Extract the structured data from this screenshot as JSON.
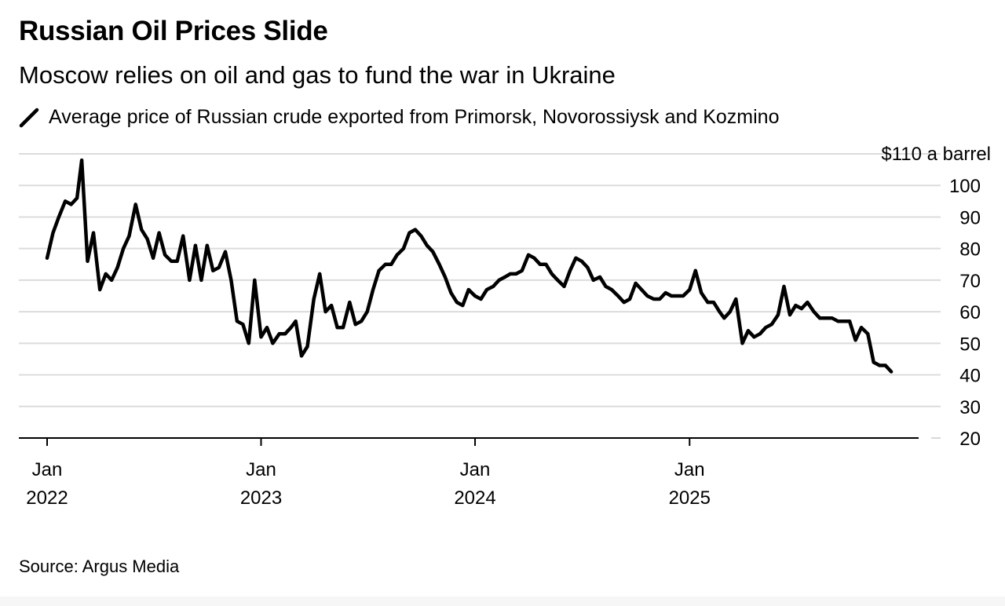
{
  "title": "Russian Oil Prices Slide",
  "subtitle": "Moscow relies on oil and gas to fund the war in Ukraine",
  "source": "Source: Argus Media",
  "chart_data": {
    "type": "line",
    "title": "Russian Oil Prices Slide",
    "subtitle": "Moscow relies on oil and gas to fund the war in Ukraine",
    "legend": {
      "position": "top-left",
      "entries": [
        "Average price of Russian crude exported from Primorsk, Novorossiysk and Kozmino"
      ]
    },
    "y_unit_label": "$110 a barrel",
    "ylim": [
      20,
      110
    ],
    "y_ticks": [
      {
        "value": 110,
        "label": "$110 a barrel"
      },
      {
        "value": 100,
        "label": "100"
      },
      {
        "value": 90,
        "label": "90"
      },
      {
        "value": 80,
        "label": "80"
      },
      {
        "value": 70,
        "label": "70"
      },
      {
        "value": 60,
        "label": "60"
      },
      {
        "value": 50,
        "label": "50"
      },
      {
        "value": 40,
        "label": "40"
      },
      {
        "value": 30,
        "label": "30"
      },
      {
        "value": 20,
        "label": "20"
      }
    ],
    "x_ticks": [
      {
        "date": "2022-01-01",
        "month": "Jan",
        "year": "2022"
      },
      {
        "date": "2023-01-01",
        "month": "Jan",
        "year": "2023"
      },
      {
        "date": "2024-01-01",
        "month": "Jan",
        "year": "2024"
      },
      {
        "date": "2025-01-01",
        "month": "Jan",
        "year": "2025"
      }
    ],
    "grid": "horizontal",
    "line_color": "#000000",
    "series": [
      {
        "name": "Average price of Russian crude exported from Primorsk, Novorossiysk and Kozmino",
        "points": [
          [
            "2022-01-01",
            77
          ],
          [
            "2022-01-11",
            85
          ],
          [
            "2022-01-21",
            90
          ],
          [
            "2022-02-01",
            95
          ],
          [
            "2022-02-11",
            94
          ],
          [
            "2022-02-21",
            96
          ],
          [
            "2022-03-01",
            108
          ],
          [
            "2022-03-11",
            76
          ],
          [
            "2022-03-21",
            85
          ],
          [
            "2022-04-01",
            67
          ],
          [
            "2022-04-11",
            72
          ],
          [
            "2022-04-21",
            70
          ],
          [
            "2022-05-01",
            74
          ],
          [
            "2022-05-11",
            80
          ],
          [
            "2022-05-21",
            84
          ],
          [
            "2022-06-01",
            94
          ],
          [
            "2022-06-11",
            86
          ],
          [
            "2022-06-21",
            83
          ],
          [
            "2022-07-01",
            77
          ],
          [
            "2022-07-11",
            85
          ],
          [
            "2022-07-21",
            78
          ],
          [
            "2022-08-01",
            76
          ],
          [
            "2022-08-11",
            76
          ],
          [
            "2022-08-21",
            84
          ],
          [
            "2022-09-01",
            70
          ],
          [
            "2022-09-11",
            81
          ],
          [
            "2022-09-21",
            70
          ],
          [
            "2022-10-01",
            81
          ],
          [
            "2022-10-11",
            73
          ],
          [
            "2022-10-21",
            74
          ],
          [
            "2022-11-01",
            79
          ],
          [
            "2022-11-11",
            70
          ],
          [
            "2022-11-21",
            57
          ],
          [
            "2022-12-01",
            56
          ],
          [
            "2022-12-11",
            50
          ],
          [
            "2022-12-21",
            70
          ],
          [
            "2023-01-01",
            52
          ],
          [
            "2023-01-11",
            55
          ],
          [
            "2023-01-21",
            50
          ],
          [
            "2023-02-01",
            53
          ],
          [
            "2023-02-11",
            53
          ],
          [
            "2023-02-21",
            55
          ],
          [
            "2023-03-01",
            57
          ],
          [
            "2023-03-11",
            46
          ],
          [
            "2023-03-21",
            49
          ],
          [
            "2023-04-01",
            64
          ],
          [
            "2023-04-11",
            72
          ],
          [
            "2023-04-21",
            60
          ],
          [
            "2023-05-01",
            62
          ],
          [
            "2023-05-11",
            55
          ],
          [
            "2023-05-21",
            55
          ],
          [
            "2023-06-01",
            63
          ],
          [
            "2023-06-11",
            56
          ],
          [
            "2023-06-21",
            57
          ],
          [
            "2023-07-01",
            60
          ],
          [
            "2023-07-11",
            67
          ],
          [
            "2023-07-21",
            73
          ],
          [
            "2023-08-01",
            75
          ],
          [
            "2023-08-11",
            75
          ],
          [
            "2023-08-21",
            78
          ],
          [
            "2023-09-01",
            80
          ],
          [
            "2023-09-11",
            85
          ],
          [
            "2023-09-21",
            86
          ],
          [
            "2023-10-01",
            84
          ],
          [
            "2023-10-11",
            81
          ],
          [
            "2023-10-21",
            79
          ],
          [
            "2023-11-01",
            75
          ],
          [
            "2023-11-11",
            71
          ],
          [
            "2023-11-21",
            66
          ],
          [
            "2023-12-01",
            63
          ],
          [
            "2023-12-11",
            62
          ],
          [
            "2023-12-21",
            67
          ],
          [
            "2024-01-01",
            65
          ],
          [
            "2024-01-11",
            64
          ],
          [
            "2024-01-21",
            67
          ],
          [
            "2024-02-01",
            68
          ],
          [
            "2024-02-11",
            70
          ],
          [
            "2024-02-21",
            71
          ],
          [
            "2024-03-01",
            72
          ],
          [
            "2024-03-11",
            72
          ],
          [
            "2024-03-21",
            73
          ],
          [
            "2024-04-01",
            78
          ],
          [
            "2024-04-11",
            77
          ],
          [
            "2024-04-21",
            75
          ],
          [
            "2024-05-01",
            75
          ],
          [
            "2024-05-11",
            72
          ],
          [
            "2024-05-21",
            70
          ],
          [
            "2024-06-01",
            68
          ],
          [
            "2024-06-11",
            73
          ],
          [
            "2024-06-21",
            77
          ],
          [
            "2024-07-01",
            76
          ],
          [
            "2024-07-11",
            74
          ],
          [
            "2024-07-21",
            70
          ],
          [
            "2024-08-01",
            71
          ],
          [
            "2024-08-11",
            68
          ],
          [
            "2024-08-21",
            67
          ],
          [
            "2024-09-01",
            65
          ],
          [
            "2024-09-11",
            63
          ],
          [
            "2024-09-21",
            64
          ],
          [
            "2024-10-01",
            69
          ],
          [
            "2024-10-11",
            67
          ],
          [
            "2024-10-21",
            65
          ],
          [
            "2024-11-01",
            64
          ],
          [
            "2024-11-11",
            64
          ],
          [
            "2024-11-21",
            66
          ],
          [
            "2024-12-01",
            65
          ],
          [
            "2024-12-11",
            65
          ],
          [
            "2024-12-21",
            65
          ],
          [
            "2025-01-01",
            67
          ],
          [
            "2025-01-11",
            73
          ],
          [
            "2025-01-21",
            66
          ],
          [
            "2025-02-01",
            63
          ],
          [
            "2025-02-11",
            63
          ],
          [
            "2025-02-21",
            60
          ],
          [
            "2025-03-01",
            58
          ],
          [
            "2025-03-11",
            60
          ],
          [
            "2025-03-21",
            64
          ],
          [
            "2025-04-01",
            50
          ],
          [
            "2025-04-11",
            54
          ],
          [
            "2025-04-21",
            52
          ],
          [
            "2025-05-01",
            53
          ],
          [
            "2025-05-11",
            55
          ],
          [
            "2025-05-21",
            56
          ],
          [
            "2025-06-01",
            59
          ],
          [
            "2025-06-11",
            68
          ],
          [
            "2025-06-21",
            59
          ],
          [
            "2025-07-01",
            62
          ],
          [
            "2025-07-11",
            61
          ],
          [
            "2025-07-21",
            63
          ],
          [
            "2025-08-01",
            60
          ],
          [
            "2025-08-11",
            58
          ],
          [
            "2025-08-21",
            58
          ],
          [
            "2025-09-01",
            58
          ],
          [
            "2025-09-11",
            57
          ],
          [
            "2025-09-21",
            57
          ],
          [
            "2025-10-01",
            57
          ],
          [
            "2025-10-11",
            51
          ],
          [
            "2025-10-21",
            55
          ],
          [
            "2025-11-01",
            53
          ],
          [
            "2025-11-11",
            44
          ],
          [
            "2025-11-21",
            43
          ],
          [
            "2025-12-01",
            43
          ],
          [
            "2025-12-11",
            41
          ]
        ]
      }
    ]
  }
}
